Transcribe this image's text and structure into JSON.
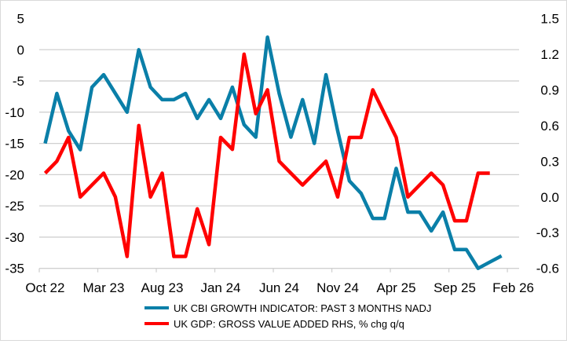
{
  "chart_data": {
    "type": "line",
    "title": "",
    "months": [
      "Oct 22",
      "Nov 22",
      "Dec 22",
      "Jan 23",
      "Feb 23",
      "Mar 23",
      "Apr 23",
      "May 23",
      "Jun 23",
      "Jul 23",
      "Aug 23",
      "Sep 23",
      "Oct 23",
      "Nov 23",
      "Dec 23",
      "Jan 24",
      "Feb 24",
      "Mar 24",
      "Apr 24",
      "May 24",
      "Jun 24",
      "Jul 24",
      "Aug 24",
      "Sep 24",
      "Oct 24",
      "Nov 24",
      "Dec 24",
      "Jan 25",
      "Feb 25",
      "Mar 25",
      "Apr 25",
      "May 25",
      "Jun 25",
      "Jul 25",
      "Aug 25",
      "Sep 25",
      "Oct 25",
      "Nov 25",
      "Dec 25",
      "Jan 26",
      "Feb 26"
    ],
    "x_tick_labels": [
      "Oct 22",
      "Mar 23",
      "Aug 23",
      "Jan 24",
      "Jun 24",
      "Nov 24",
      "Apr 25",
      "Sep 25",
      "Feb 26"
    ],
    "left_axis": {
      "ylim": [
        -35,
        5
      ],
      "ticks": [
        "5",
        "0",
        "-5",
        "-10",
        "-15",
        "-20",
        "-25",
        "-30",
        "-35"
      ]
    },
    "right_axis": {
      "ylim": [
        -0.6,
        1.5
      ],
      "ticks": [
        "1.5",
        "1.2",
        "0.9",
        "0.6",
        "0.3",
        "0.0",
        "-0.3",
        "-0.6"
      ]
    },
    "grid": true,
    "legend_position": "bottom",
    "series": [
      {
        "name": "UK CBI GROWTH INDICATOR: PAST 3 MONTHS NADJ",
        "axis": "left",
        "color": "#0a7fa8",
        "values": [
          -15,
          -7,
          -13,
          -16,
          -6,
          -4,
          -7,
          -10,
          0,
          -6,
          -8,
          -8,
          -7,
          -11,
          -8,
          -11,
          -6,
          -12,
          -14,
          2,
          -7,
          -14,
          -8,
          -15,
          -4,
          -13,
          -21,
          -23,
          -27,
          -27,
          -19,
          -26,
          -26,
          -29,
          -26,
          -32,
          -32,
          -35,
          -34,
          -33
        ]
      },
      {
        "name": "UK GDP: GROSS VALUE ADDED RHS, % chg q/q",
        "axis": "right",
        "color": "#ff0000",
        "values": [
          0.2,
          0.3,
          0.5,
          0.0,
          0.1,
          0.2,
          0.0,
          -0.5,
          0.6,
          0.0,
          0.2,
          -0.5,
          -0.5,
          -0.1,
          -0.4,
          0.5,
          0.4,
          1.2,
          0.7,
          0.9,
          0.3,
          0.2,
          0.1,
          0.2,
          0.3,
          0.0,
          0.5,
          0.5,
          0.9,
          0.7,
          0.5,
          0.0,
          0.1,
          0.2,
          0.1,
          -0.2,
          -0.2,
          0.2,
          0.2
        ]
      }
    ]
  }
}
